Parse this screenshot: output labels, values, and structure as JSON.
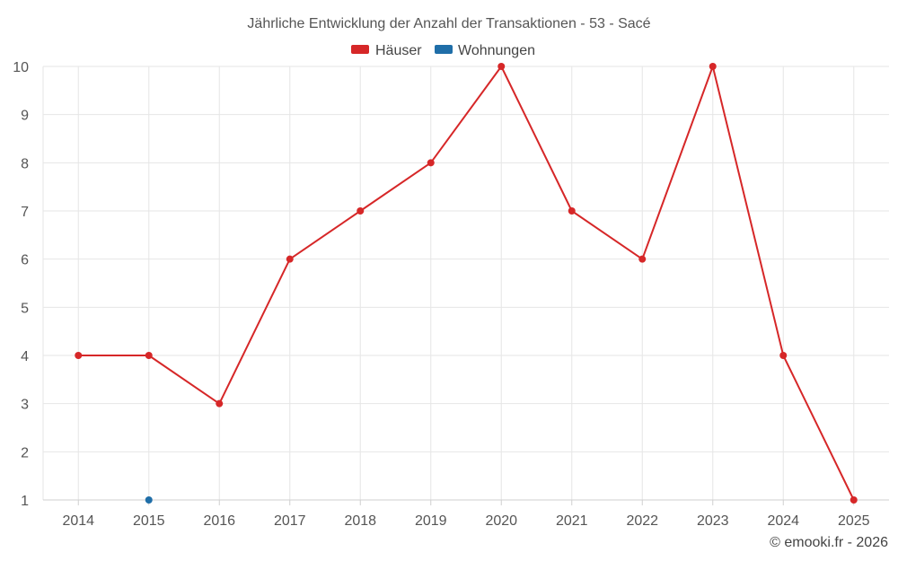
{
  "chart_data": {
    "type": "line",
    "title": "Jährliche Entwicklung der Anzahl der Transaktionen - 53 - Sacé",
    "categories": [
      "2014",
      "2015",
      "2016",
      "2017",
      "2018",
      "2019",
      "2020",
      "2021",
      "2022",
      "2023",
      "2024",
      "2025"
    ],
    "series": [
      {
        "name": "Häuser",
        "color": "#d62728",
        "values": [
          4,
          4,
          3,
          6,
          7,
          8,
          10,
          7,
          6,
          10,
          4,
          1
        ]
      },
      {
        "name": "Wohnungen",
        "color": "#1f6ea8",
        "values": [
          null,
          1,
          null,
          null,
          null,
          null,
          null,
          null,
          null,
          null,
          null,
          null
        ]
      }
    ],
    "ylim": [
      1,
      10
    ],
    "yticks": [
      1,
      2,
      3,
      4,
      5,
      6,
      7,
      8,
      9,
      10
    ],
    "xlabel": "",
    "ylabel": "",
    "grid": true,
    "legend": "top-center"
  },
  "credit": "© emooki.fr - 2026"
}
